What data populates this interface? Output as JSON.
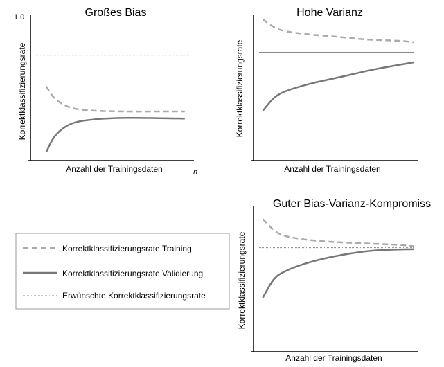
{
  "colors": {
    "training": "#aaaaaa",
    "validation": "#777777",
    "desired": "#888888",
    "axis": "#000000"
  },
  "legend": {
    "items": [
      {
        "label": "Korrektklassifizierungsrate Training",
        "style": "dashed"
      },
      {
        "label": "Korrektklassifizierungsrate Validierung",
        "style": "solid"
      },
      {
        "label": "Erwünschte Korrektklassifizierungsrate",
        "style": "dotted"
      }
    ]
  },
  "chart_data": [
    {
      "type": "line",
      "title": "Großes Bias",
      "xlabel": "Anzahl der Trainingsdaten",
      "ylabel": "Korrektklassifizierungsrate",
      "y_tick_label": "1.0",
      "x_end_label": "n",
      "xlim": [
        0,
        1
      ],
      "ylim": [
        0,
        1
      ],
      "desired": 0.73,
      "series": [
        {
          "x": [
            0.09,
            0.15,
            0.25,
            0.4,
            0.6,
            0.8,
            0.96
          ],
          "values": [
            0.51,
            0.42,
            0.36,
            0.34,
            0.335,
            0.335,
            0.335
          ]
        },
        {
          "x": [
            0.09,
            0.15,
            0.25,
            0.4,
            0.6,
            0.8,
            0.96
          ],
          "values": [
            0.05,
            0.17,
            0.25,
            0.28,
            0.29,
            0.288,
            0.285
          ]
        }
      ]
    },
    {
      "type": "line",
      "title": "Hohe Varianz",
      "xlabel": "Anzahl der Trainingsdaten",
      "ylabel": "Korrektklassifizierungsrate",
      "xlim": [
        0,
        1
      ],
      "ylim": [
        0,
        1
      ],
      "desired": 0.75,
      "series": [
        {
          "x": [
            0.05,
            0.15,
            0.3,
            0.5,
            0.7,
            0.9,
            1.0
          ],
          "values": [
            0.98,
            0.91,
            0.88,
            0.86,
            0.84,
            0.83,
            0.82
          ]
        },
        {
          "x": [
            0.05,
            0.12,
            0.2,
            0.35,
            0.55,
            0.75,
            1.0
          ],
          "values": [
            0.34,
            0.43,
            0.48,
            0.53,
            0.58,
            0.63,
            0.68
          ]
        }
      ]
    },
    {
      "type": "line",
      "title": "Guter Bias-Varianz-Kompromiss",
      "xlabel": "Anzahl der Trainingsdaten",
      "ylabel": "Korrektklassifizierungsrate",
      "xlim": [
        0,
        1
      ],
      "ylim": [
        0,
        1
      ],
      "desired": 0.72,
      "series": [
        {
          "x": [
            0.05,
            0.15,
            0.3,
            0.5,
            0.7,
            0.9,
            1.0
          ],
          "values": [
            0.92,
            0.82,
            0.78,
            0.76,
            0.75,
            0.74,
            0.73
          ]
        },
        {
          "x": [
            0.05,
            0.12,
            0.2,
            0.35,
            0.55,
            0.75,
            1.0
          ],
          "values": [
            0.37,
            0.5,
            0.56,
            0.62,
            0.67,
            0.7,
            0.71
          ]
        }
      ]
    }
  ]
}
